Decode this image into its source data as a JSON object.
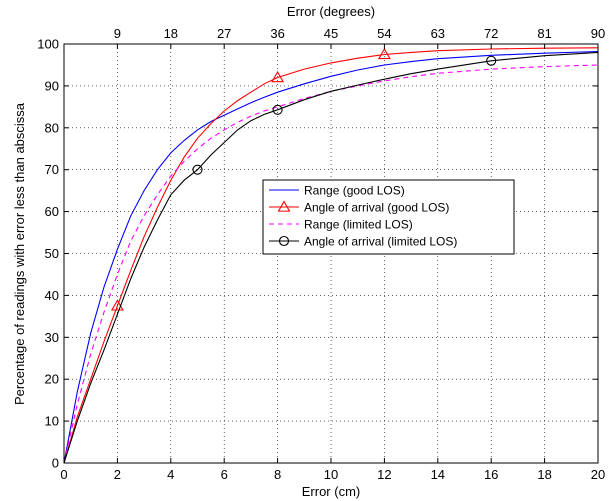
{
  "chart_data": {
    "type": "line",
    "title": "",
    "xlabel": "Error (cm)",
    "ylabel": "Percentage of readings with error less than abscissa",
    "x2label": "Error (degrees)",
    "xlim": [
      0,
      20
    ],
    "ylim": [
      0,
      100
    ],
    "x2lim": [
      0,
      90
    ],
    "xticks": [
      0,
      2,
      4,
      6,
      8,
      10,
      12,
      14,
      16,
      18,
      20
    ],
    "yticks": [
      0,
      10,
      20,
      30,
      40,
      50,
      60,
      70,
      80,
      90,
      100
    ],
    "x2ticks": [
      9,
      18,
      27,
      36,
      45,
      54,
      63,
      72,
      81,
      90
    ],
    "grid": true,
    "legend_position": "center-right",
    "series": [
      {
        "name": "Range (good LOS)",
        "color": "#0000ff",
        "dash": "solid",
        "marker": "none",
        "x": [
          0,
          0.5,
          1,
          1.5,
          2,
          2.5,
          3,
          3.5,
          4,
          4.5,
          5,
          5.5,
          6,
          6.5,
          7,
          7.5,
          8,
          9,
          10,
          11,
          12,
          13,
          14,
          16,
          18,
          20
        ],
        "y": [
          0,
          17,
          31,
          42,
          51,
          59,
          65,
          70,
          74,
          77,
          79.5,
          81.5,
          83,
          84.5,
          86,
          87.3,
          88.5,
          90.5,
          92.3,
          93.8,
          95,
          95.8,
          96.5,
          97.3,
          97.8,
          98.2
        ],
        "marker_x": [],
        "marker_y": []
      },
      {
        "name": "Angle of arrival (good LOS)",
        "color": "#ff0000",
        "dash": "solid",
        "marker": "triangle",
        "x": [
          0,
          0.5,
          1,
          1.5,
          2,
          2.5,
          3,
          3.5,
          4,
          4.5,
          5,
          5.5,
          6,
          6.5,
          7,
          7.5,
          8,
          9,
          10,
          11,
          12,
          13,
          14,
          16,
          18,
          20
        ],
        "y": [
          0,
          11,
          20,
          29,
          37.5,
          46,
          54,
          61,
          67.5,
          73,
          77.5,
          81,
          84,
          86.5,
          88.5,
          90.5,
          92,
          94,
          95.5,
          96.6,
          97.5,
          98,
          98.4,
          98.8,
          99,
          99.1
        ],
        "marker_x": [
          2,
          8,
          12
        ],
        "marker_y": [
          37.5,
          92,
          97.5
        ]
      },
      {
        "name": "Range (limited LOS)",
        "color": "#ff00ff",
        "dash": "dashed",
        "marker": "none",
        "x": [
          0,
          0.5,
          1,
          1.5,
          2,
          2.5,
          3,
          3.5,
          4,
          4.5,
          5,
          5.5,
          6,
          6.5,
          7,
          7.5,
          8,
          9,
          10,
          11,
          12,
          13,
          14,
          16,
          18,
          20
        ],
        "y": [
          0,
          14,
          26,
          36,
          45,
          53,
          59,
          64,
          68.5,
          72,
          75,
          77.5,
          79.5,
          81.3,
          82.8,
          84,
          85,
          87,
          88.7,
          90,
          91.2,
          92.2,
          93,
          94,
          94.6,
          95
        ],
        "marker_x": [],
        "marker_y": []
      },
      {
        "name": "Angle of arrival (limited LOS)",
        "color": "#000000",
        "dash": "solid",
        "marker": "circle",
        "x": [
          0,
          0.5,
          1,
          1.5,
          2,
          2.5,
          3,
          3.5,
          4,
          4.5,
          5,
          5.5,
          6,
          6.5,
          7,
          7.5,
          8,
          9,
          10,
          11,
          12,
          13,
          14,
          16,
          18,
          20
        ],
        "y": [
          0,
          10,
          19,
          27,
          35.5,
          44,
          51.5,
          58,
          64,
          67.5,
          70,
          73.5,
          76.5,
          79.5,
          81.7,
          83.2,
          84.3,
          86.7,
          88.7,
          90.2,
          91.6,
          92.9,
          94,
          96,
          97.2,
          98
        ],
        "marker_x": [
          5,
          8,
          16
        ],
        "marker_y": [
          70,
          84.3,
          96
        ]
      }
    ]
  }
}
